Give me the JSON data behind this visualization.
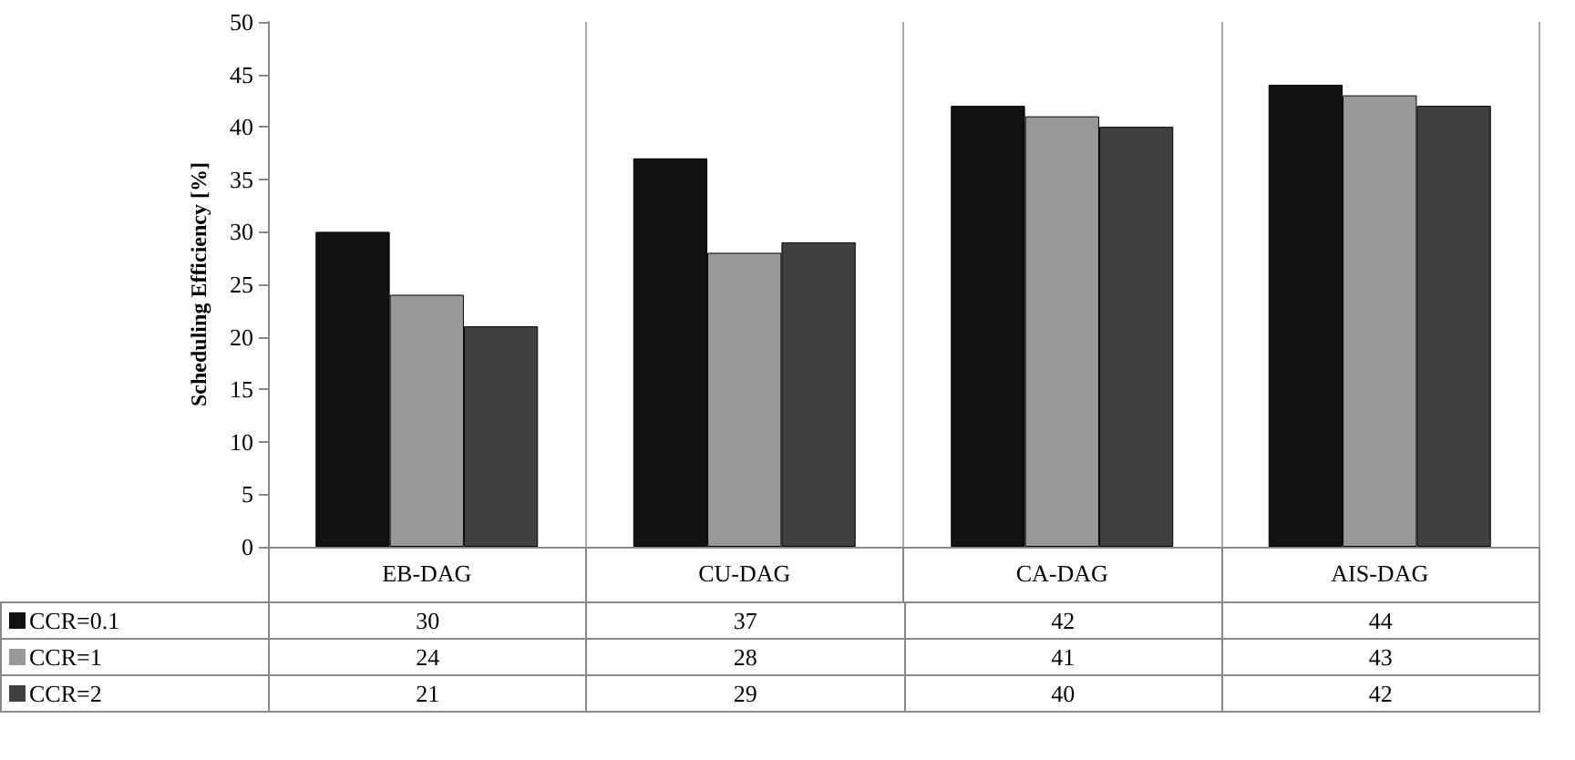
{
  "chart_data": {
    "type": "bar",
    "ylabel": "Scheduling Efficiency [%]",
    "categories": [
      "EB-DAG",
      "CU-DAG",
      "CA-DAG",
      "AIS-DAG"
    ],
    "series": [
      {
        "name": "CCR=0.1",
        "color": "#111111",
        "values": [
          30,
          37,
          42,
          44
        ]
      },
      {
        "name": "CCR=1",
        "color": "#999999",
        "values": [
          24,
          28,
          41,
          43
        ]
      },
      {
        "name": "CCR=2",
        "color": "#404040",
        "values": [
          21,
          29,
          40,
          42
        ]
      }
    ],
    "ylim": [
      0,
      50
    ],
    "yticks": [
      0,
      5,
      10,
      15,
      20,
      25,
      30,
      35,
      40,
      45,
      50
    ],
    "grid": "x",
    "legend": "bottom",
    "data_labels": true
  }
}
